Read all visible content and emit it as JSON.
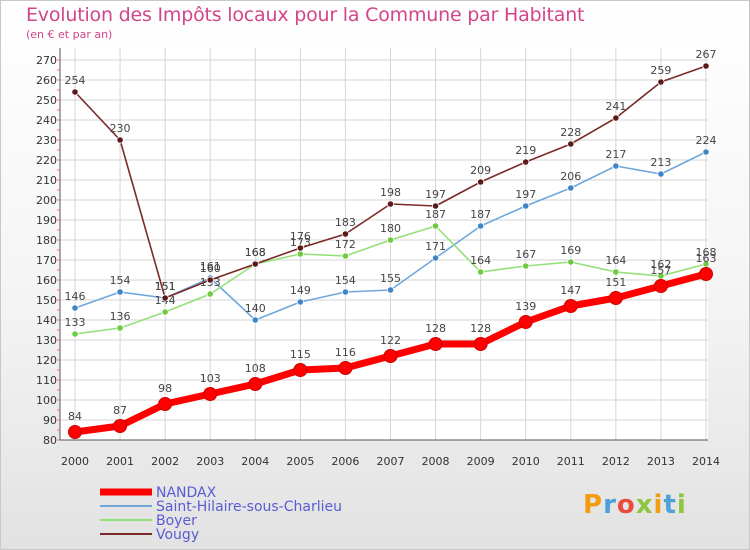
{
  "title": "Evolution des Impôts locaux pour la Commune par Habitant",
  "subtitle": "(en € et par an)",
  "logo": {
    "text": "Proxiti",
    "colors": [
      "#f39c12",
      "#4f9fd8",
      "#e74c3c",
      "#8fc641",
      "#f39c12",
      "#4f9fd8",
      "#8fc641"
    ]
  },
  "chart_data": {
    "type": "line",
    "x": [
      2000,
      2001,
      2002,
      2003,
      2004,
      2005,
      2006,
      2007,
      2008,
      2009,
      2010,
      2011,
      2012,
      2013,
      2014
    ],
    "ylim": [
      80,
      270
    ],
    "yticks": [
      80,
      90,
      100,
      110,
      120,
      130,
      140,
      150,
      160,
      170,
      180,
      190,
      200,
      210,
      220,
      230,
      240,
      250,
      260,
      270
    ],
    "grid": true,
    "legend_position": "bottom-left",
    "series": [
      {
        "name": "NANDAX",
        "color": "#ff0000",
        "marker_color": "#ff0000",
        "label_color": "#444444",
        "emphasis": true,
        "values": [
          84,
          87,
          98,
          103,
          108,
          115,
          116,
          122,
          128,
          128,
          139,
          147,
          151,
          157,
          163
        ],
        "labels": [
          "84",
          "87",
          "98",
          "103",
          "108",
          "115",
          "116",
          "122",
          "128",
          "128",
          "139",
          "147",
          "151",
          "157",
          "163"
        ]
      },
      {
        "name": "Saint-Hilaire-sous-Charlieu",
        "color": "#6fa8dc",
        "marker_color": "#3d85c6",
        "label_color": "#444444",
        "values": [
          146,
          154,
          151,
          161,
          140,
          149,
          154,
          155,
          171,
          187,
          197,
          206,
          217,
          213,
          224
        ],
        "labels": [
          "146",
          "154",
          "151",
          "161",
          "140",
          "149",
          "154",
          "155",
          "171",
          "187",
          "197",
          "206",
          "217",
          "213",
          "224"
        ]
      },
      {
        "name": "Boyer",
        "color": "#93e077",
        "marker_color": "#6ccb3f",
        "label_color": "#444444",
        "values": [
          133,
          136,
          144,
          153,
          168,
          173,
          172,
          180,
          187,
          164,
          167,
          169,
          164,
          162,
          168
        ],
        "labels": [
          "133",
          "136",
          "144",
          "153",
          "168",
          "173",
          "172",
          "180",
          "187",
          "164",
          "167",
          "169",
          "164",
          "162",
          "168"
        ]
      },
      {
        "name": "Vougy",
        "color": "#7b2a2a",
        "marker_color": "#5a1a1a",
        "label_color": "#444444",
        "values": [
          254,
          230,
          151,
          160,
          168,
          176,
          183,
          198,
          197,
          209,
          219,
          228,
          241,
          259,
          267
        ],
        "labels": [
          "254",
          "230",
          "151",
          "160",
          "168",
          "176",
          "183",
          "198",
          "197",
          "209",
          "219",
          "228",
          "241",
          "259",
          "267"
        ]
      }
    ]
  }
}
